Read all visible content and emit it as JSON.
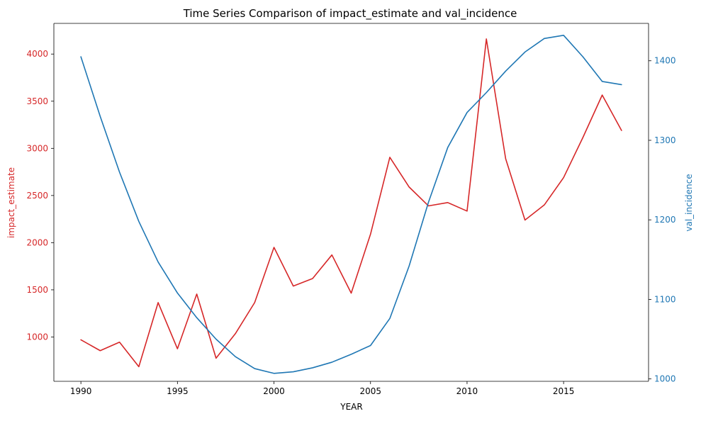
{
  "chart_data": {
    "type": "line",
    "title": "Time Series Comparison of impact_estimate and val_incidence",
    "xlabel": "YEAR",
    "ylabel_left": "impact_estimate",
    "ylabel_right": "val_incidence",
    "xlim": [
      1988.6,
      2019.4
    ],
    "ylim_left": [
      530,
      4325
    ],
    "ylim_right": [
      997,
      1447
    ],
    "x_ticks": [
      1990,
      1995,
      2000,
      2005,
      2010,
      2015
    ],
    "y_left_ticks": [
      1000,
      1500,
      2000,
      2500,
      3000,
      3500,
      4000
    ],
    "y_right_ticks": [
      1000,
      1100,
      1200,
      1300,
      1400
    ],
    "grid": false,
    "x": [
      1990,
      1991,
      1992,
      1993,
      1994,
      1995,
      1996,
      1997,
      1998,
      1999,
      2000,
      2001,
      2002,
      2003,
      2004,
      2005,
      2006,
      2007,
      2008,
      2009,
      2010,
      2011,
      2012,
      2013,
      2014,
      2015,
      2016,
      2017,
      2018
    ],
    "series": [
      {
        "axis": "left",
        "color": "#d62728",
        "values": [
          970,
          855,
          945,
          685,
          1365,
          875,
          1455,
          775,
          1035,
          1365,
          1950,
          1540,
          1620,
          1870,
          1465,
          2090,
          2905,
          2590,
          2390,
          2425,
          2335,
          4160,
          2890,
          2240,
          2400,
          2690,
          3115,
          3565,
          3190
        ]
      },
      {
        "axis": "right",
        "color": "#1f77b4",
        "values": [
          1405,
          1330,
          1260,
          1198,
          1147,
          1108,
          1077,
          1050,
          1028,
          1013,
          1007,
          1009,
          1014,
          1021,
          1031,
          1042,
          1076,
          1142,
          1222,
          1291,
          1335,
          1360,
          1387,
          1411,
          1428,
          1432,
          1405,
          1374,
          1370
        ]
      }
    ]
  }
}
